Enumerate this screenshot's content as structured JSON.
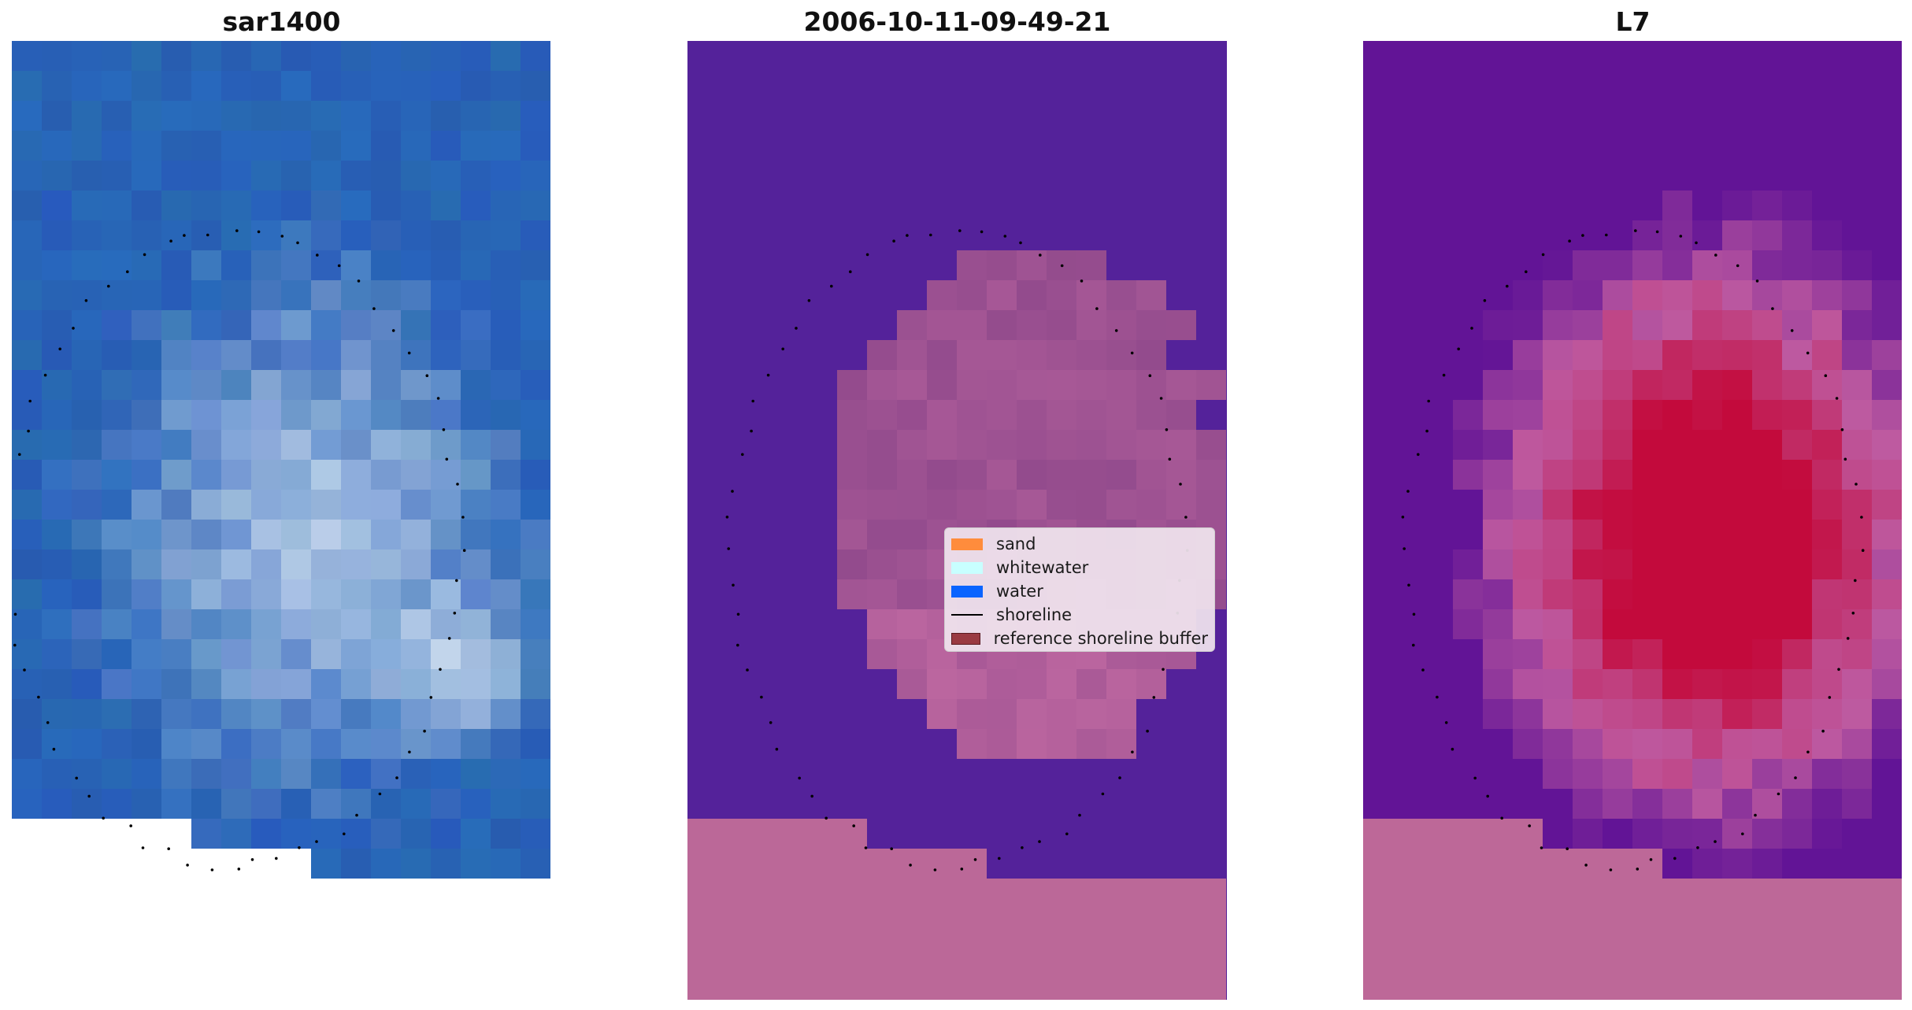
{
  "panels": {
    "left": {
      "title": "sar1400",
      "image_kind": "true-colour RGB composite (blue ocean with pale whitewater patch)"
    },
    "middle": {
      "title": "2006-10-11-09-49-21",
      "image_kind": "classified image overlay (purple water, pink sand-like areas)"
    },
    "right": {
      "title": "L7",
      "image_kind": "index / probability colormap (purple to crimson)"
    }
  },
  "legend": {
    "items": [
      {
        "label": "sand",
        "color": "#ff8c3c",
        "kind": "patch"
      },
      {
        "label": "whitewater",
        "color": "#c8ffff",
        "kind": "patch"
      },
      {
        "label": "water",
        "color": "#0a64ff",
        "kind": "patch"
      },
      {
        "label": "shoreline",
        "color": "#000000",
        "kind": "line"
      },
      {
        "label": "reference shoreline buffer",
        "color": "#9a3a42",
        "kind": "patch"
      }
    ]
  },
  "colors": {
    "middle_water": "#54229a",
    "middle_sand": "#bb6898",
    "right_sand": "#bd6898",
    "shoreline": "#000000"
  }
}
